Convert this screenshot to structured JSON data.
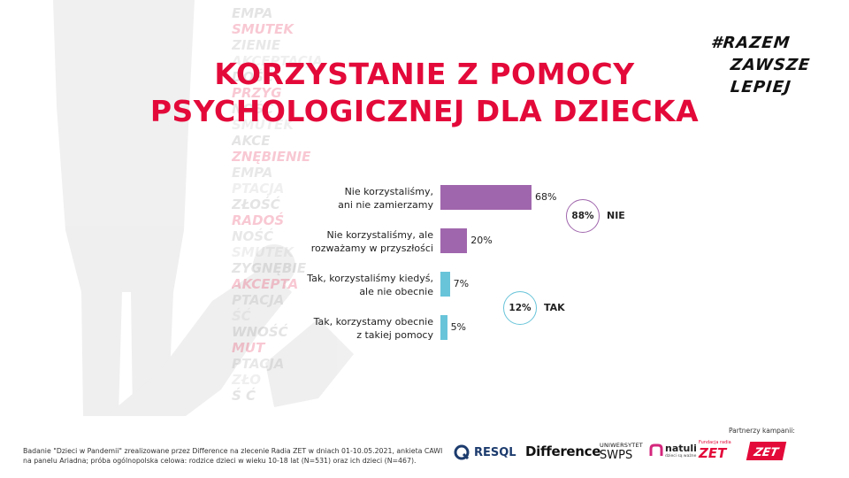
{
  "slide": {
    "title_line1": "KORZYSTANIE Z POMOCY",
    "title_line2": "PSYCHOLOGICZNEJ DLA DZIECKA",
    "hashtag_line1": "#RAZEM",
    "hashtag_line2": "ZAWSZE",
    "hashtag_line3": "LEPIEJ",
    "footnote": "Badanie \"Dzieci w Pandemii\" zrealizowane przez Difference na zlecenie Radia ZET w dniach 01-10.05.2021, ankieta CAWI na panelu Ariadna; próba ogólnopolska celowa: rodzice dzieci w wieku 10-18 lat (N=531) oraz ich dzieci (N=467).",
    "partners_label": "Partnerzy kampanii:"
  },
  "background_words": [
    "EMPA",
    "SMUTEK",
    "ZIENIE",
    "AKCEPTACJA",
    "DOŚĆ",
    "PRZYG",
    "NOŚĆ",
    "SMUTEK",
    "AKCE",
    "ZNĘBIENIE",
    "EMPA",
    "PTACJA",
    "ZŁOŚĆ",
    "RADOŚ",
    "NOŚĆ",
    "SMUTEK",
    "ZYGNĘBIE",
    "AKCEPTA",
    "PTACJA",
    "ŚĆ",
    "WNOŚĆ",
    "MUT",
    "PTACJA",
    "ZŁO",
    "Ś Ć"
  ],
  "logos": {
    "resql": "RESQL",
    "difference": "Difference",
    "swps_top": "UNIWERSYTET",
    "swps_bottom": "SWPS",
    "natuli": "natuli",
    "natuli_sub": "dzieci są ważne",
    "fundacja": "Fundacja radia",
    "zet": "ZET"
  },
  "colors": {
    "title": "#e30a3a",
    "nie": "#a066ad",
    "tak": "#68c4d9",
    "nie_ring": "#a066ad",
    "tak_ring": "#68c4d9"
  },
  "chart_data": {
    "type": "bar",
    "orientation": "horizontal",
    "title": "KORZYSTANIE Z POMOCY PSYCHOLOGICZNEJ DLA DZIECKA",
    "categories": [
      [
        "Nie korzystaliśmy,",
        "ani nie zamierzamy"
      ],
      [
        "Nie korzystaliśmy, ale",
        "rozważamy w przyszłości"
      ],
      [
        "Tak, korzystaliśmy kiedyś,",
        "ale nie obecnie"
      ],
      [
        "Tak, korzystamy obecnie",
        "z takiej pomocy"
      ]
    ],
    "values": [
      68,
      20,
      7,
      5
    ],
    "value_labels": [
      "68%",
      "20%",
      "7%",
      "5%"
    ],
    "groups": [
      "nie",
      "nie",
      "tak",
      "tak"
    ],
    "xlim": [
      0,
      100
    ],
    "summary": [
      {
        "value": "88%",
        "label": "NIE",
        "group": "nie"
      },
      {
        "value": "12%",
        "label": "TAK",
        "group": "tak"
      }
    ]
  }
}
